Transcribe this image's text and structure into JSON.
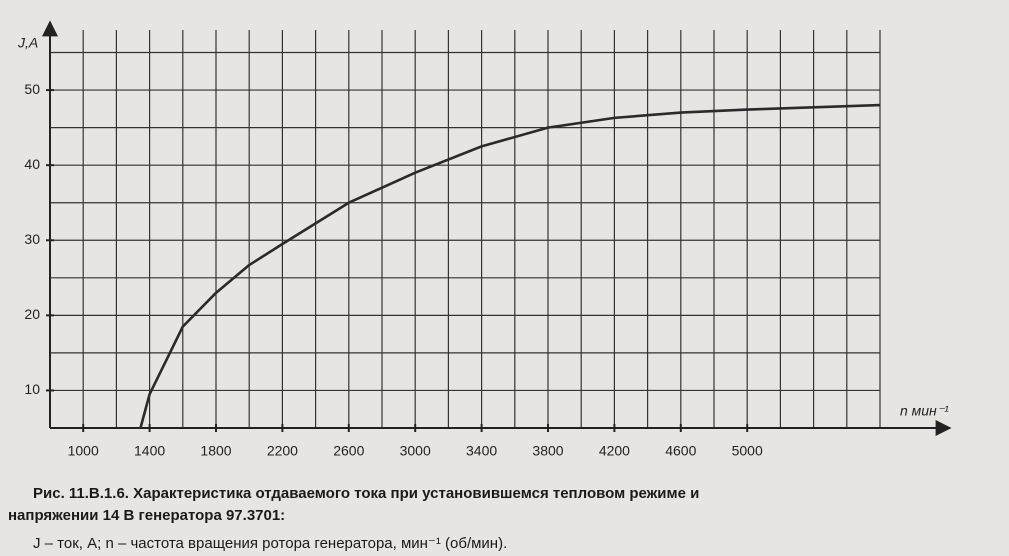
{
  "chart_data": {
    "type": "line",
    "y_label": "J,A",
    "x_label": "n мин⁻¹",
    "caption": [
      "Рис. 11.В.1.6. Характеристика отдаваемого тока при установившемся тепловом режиме и",
      "напряжении 14 В генератора 97.3701:"
    ],
    "note": "J – ток, А; n – частота вращения ротора генератора, мин⁻¹ (об/мин).",
    "xlim": [
      800,
      5800
    ],
    "ylim": [
      5,
      58
    ],
    "xticks": [
      1000,
      1400,
      1800,
      2200,
      2600,
      3000,
      3400,
      3800,
      4200,
      4600,
      5000
    ],
    "yticks": [
      10,
      20,
      30,
      40,
      50
    ],
    "x_grid_step": 200,
    "y_grid_step": 5,
    "grid": true,
    "x": [
      1345,
      1400,
      1500,
      1600,
      1800,
      2000,
      2200,
      2600,
      3000,
      3400,
      3800,
      4200,
      4600,
      5000,
      5400,
      5800
    ],
    "series": [
      {
        "color": "#2a2a2a",
        "values": [
          5,
          9.5,
          14,
          18.5,
          23,
          26.7,
          29.5,
          35,
          39,
          42.5,
          45,
          46.3,
          47,
          47.4,
          47.7,
          48
        ]
      }
    ]
  }
}
